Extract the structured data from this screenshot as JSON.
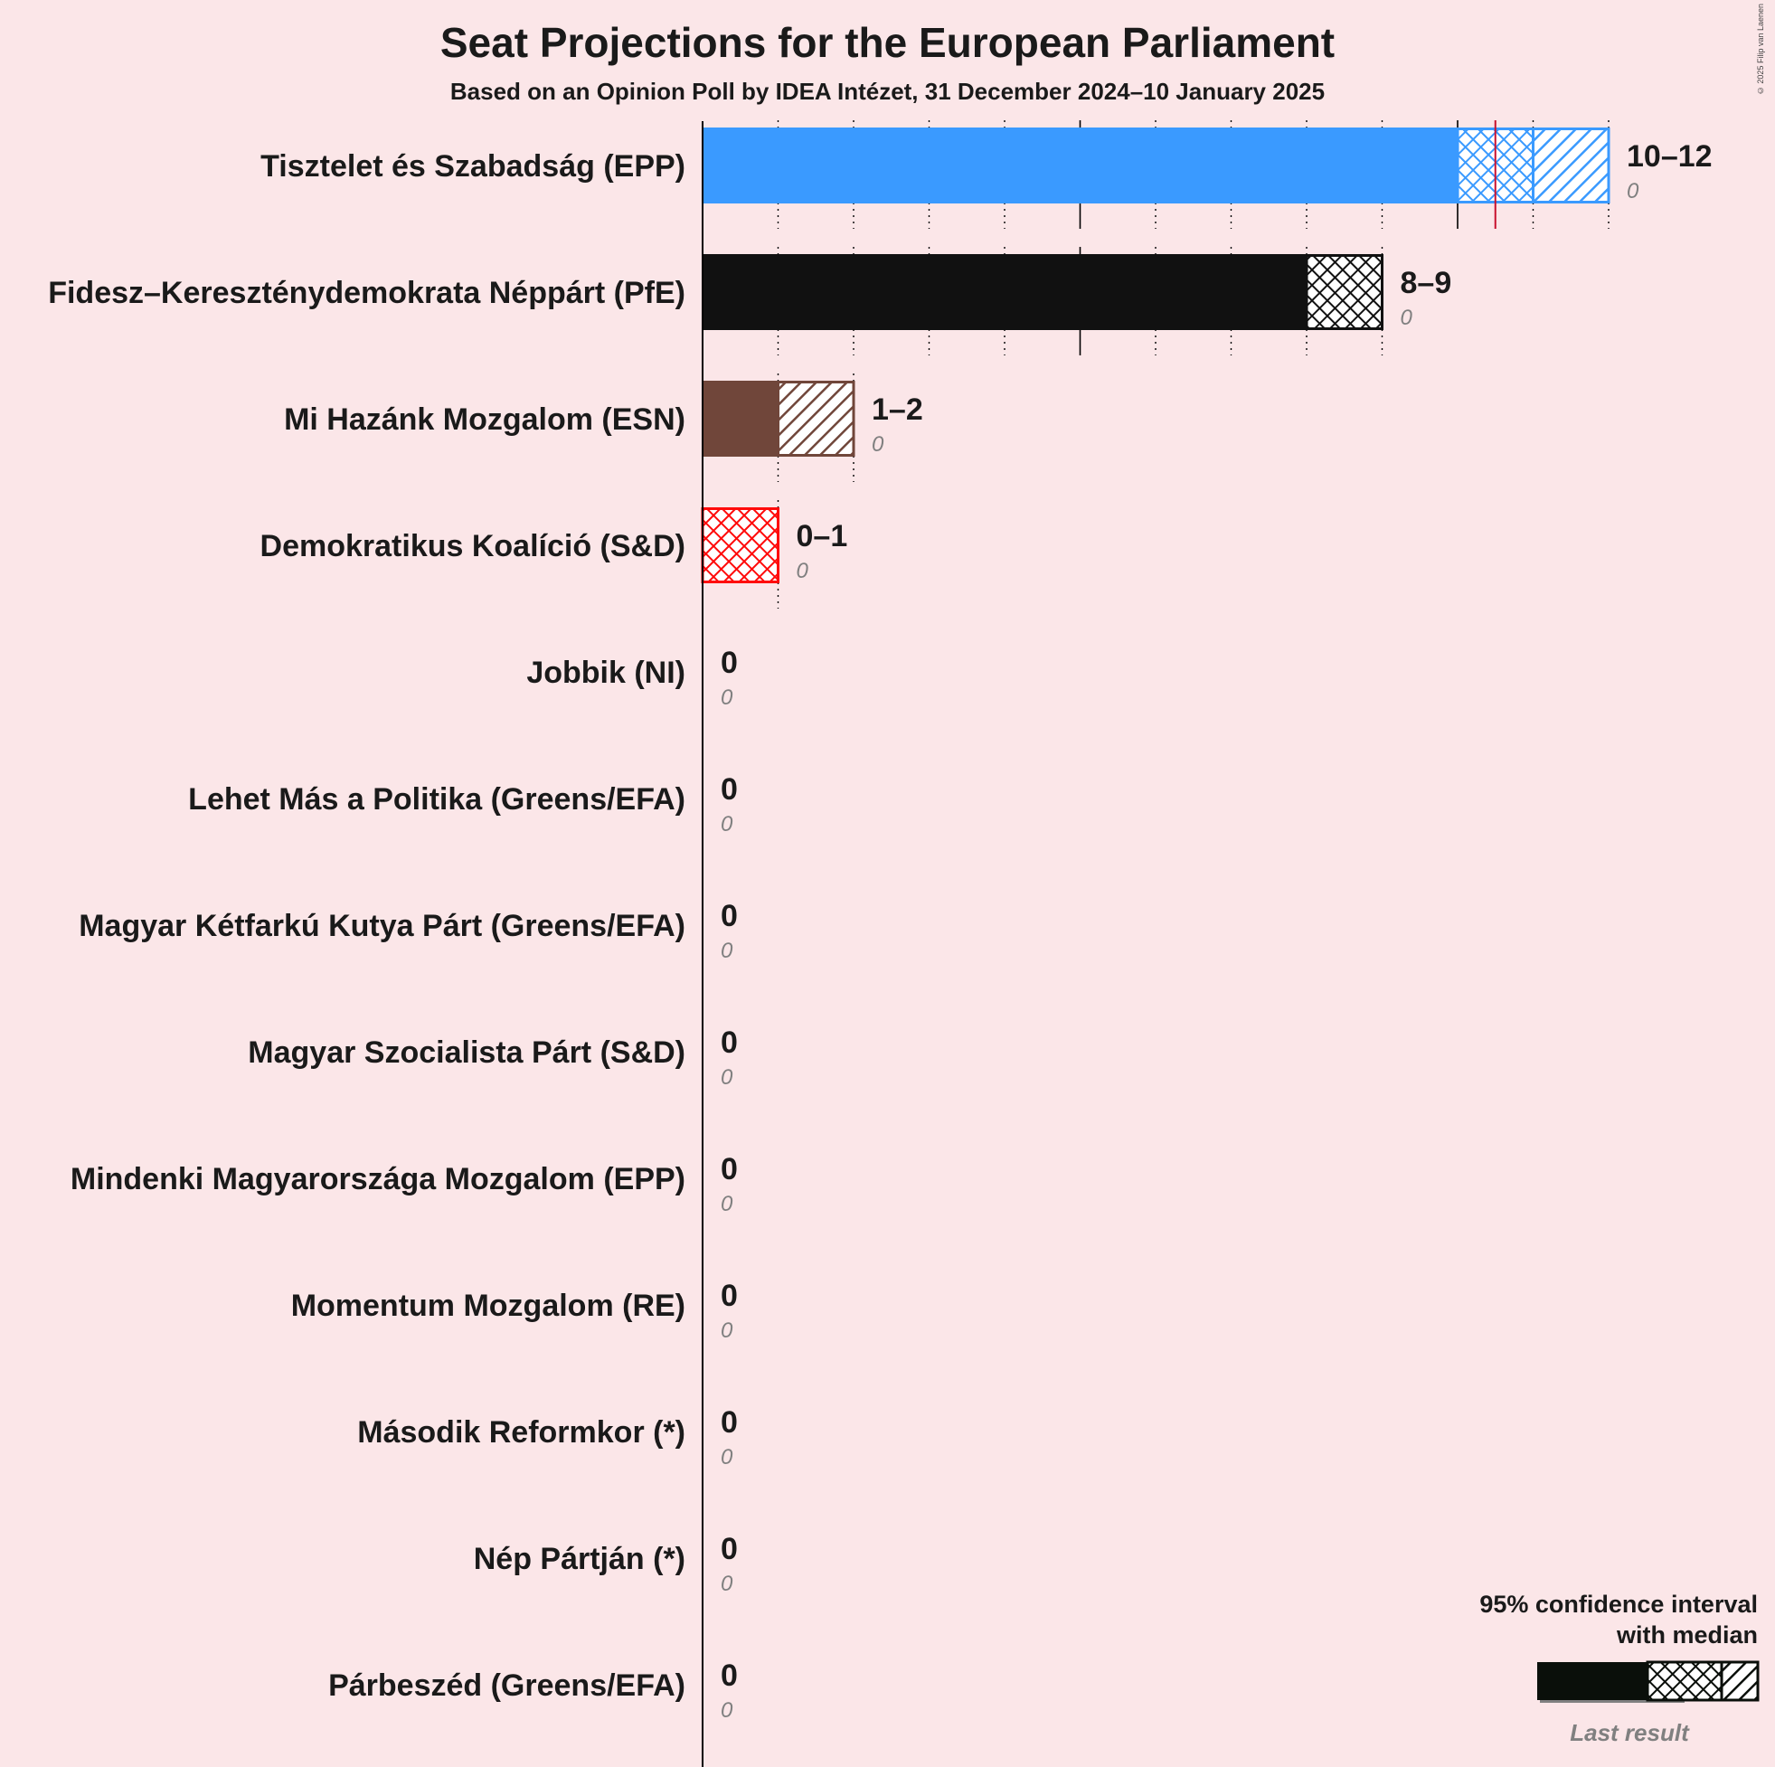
{
  "title": "Seat Projections for the European Parliament",
  "subtitle": "Based on an Opinion Poll by IDEA Intézet, 31 December 2024–10 January 2025",
  "copyright": "© 2025 Filip van Laenen",
  "legend": {
    "line1": "95% confidence interval",
    "line2": "with median",
    "last_result": "Last result"
  },
  "chart_data": {
    "type": "bar",
    "orientation": "horizontal",
    "title": "Seat Projections for the European Parliament",
    "subtitle": "Based on an Opinion Poll by IDEA Intézet, 31 December 2024–10 January 2025",
    "xlim": [
      0,
      12
    ],
    "grid": "dotted vertical lines at each seat, solid every 5",
    "series": [
      {
        "name": "Tisztelet és Szabadság (EPP)",
        "color": "#3a9aff",
        "ci_low": 10,
        "median": 11,
        "ci_high": 12,
        "range_label": "10–12",
        "last_result": 0,
        "last_label": "0",
        "marker": 10.5
      },
      {
        "name": "Fidesz–Kereszténydemokrata Néppárt (PfE)",
        "color": "#111111",
        "ci_low": 8,
        "median": 9,
        "ci_high": 9,
        "range_label": "8–9",
        "last_result": 0,
        "last_label": "0"
      },
      {
        "name": "Mi Hazánk Mozgalom (ESN)",
        "color": "#70463a",
        "ci_low": 1,
        "median": 1,
        "ci_high": 2,
        "range_label": "1–2",
        "last_result": 0,
        "last_label": "0"
      },
      {
        "name": "Demokratikus Koalíció (S&D)",
        "color": "#ff0a0a",
        "ci_low": 0,
        "median": 1,
        "ci_high": 1,
        "range_label": "0–1",
        "last_result": 0,
        "last_label": "0"
      },
      {
        "name": "Jobbik (NI)",
        "color": "#111111",
        "ci_low": 0,
        "median": 0,
        "ci_high": 0,
        "range_label": "0",
        "last_result": 0,
        "last_label": "0"
      },
      {
        "name": "Lehet Más a Politika (Greens/EFA)",
        "color": "#111111",
        "ci_low": 0,
        "median": 0,
        "ci_high": 0,
        "range_label": "0",
        "last_result": 0,
        "last_label": "0"
      },
      {
        "name": "Magyar Kétfarkú Kutya Párt (Greens/EFA)",
        "color": "#111111",
        "ci_low": 0,
        "median": 0,
        "ci_high": 0,
        "range_label": "0",
        "last_result": 0,
        "last_label": "0"
      },
      {
        "name": "Magyar Szocialista Párt (S&D)",
        "color": "#111111",
        "ci_low": 0,
        "median": 0,
        "ci_high": 0,
        "range_label": "0",
        "last_result": 0,
        "last_label": "0"
      },
      {
        "name": "Mindenki Magyarországa Mozgalom (EPP)",
        "color": "#111111",
        "ci_low": 0,
        "median": 0,
        "ci_high": 0,
        "range_label": "0",
        "last_result": 0,
        "last_label": "0"
      },
      {
        "name": "Momentum Mozgalom (RE)",
        "color": "#111111",
        "ci_low": 0,
        "median": 0,
        "ci_high": 0,
        "range_label": "0",
        "last_result": 0,
        "last_label": "0"
      },
      {
        "name": "Második Reformkor (*)",
        "color": "#111111",
        "ci_low": 0,
        "median": 0,
        "ci_high": 0,
        "range_label": "0",
        "last_result": 0,
        "last_label": "0"
      },
      {
        "name": "Nép Pártján (*)",
        "color": "#111111",
        "ci_low": 0,
        "median": 0,
        "ci_high": 0,
        "range_label": "0",
        "last_result": 0,
        "last_label": "0"
      },
      {
        "name": "Párbeszéd (Greens/EFA)",
        "color": "#111111",
        "ci_low": 0,
        "median": 0,
        "ci_high": 0,
        "range_label": "0",
        "last_result": 0,
        "last_label": "0"
      }
    ]
  }
}
